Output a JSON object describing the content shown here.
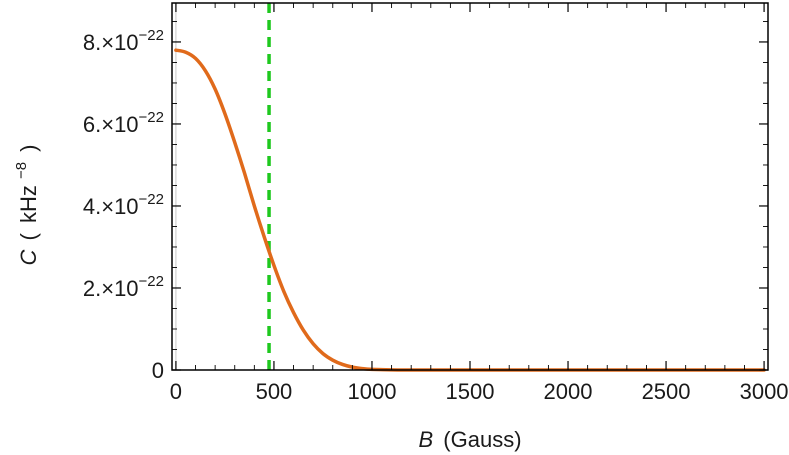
{
  "chart_data": {
    "type": "line",
    "title": "",
    "xlabel": {
      "symbol": "B",
      "unit": "(Gauss)"
    },
    "ylabel": {
      "symbol": "C",
      "open": "(",
      "unit_base": "kHz",
      "unit_exp": "−8",
      "close": ")"
    },
    "xlim": [
      -20,
      3020
    ],
    "ylim": [
      0,
      8.95e-22
    ],
    "x_ticks": [
      {
        "value": 0,
        "label": "0"
      },
      {
        "value": 500,
        "label": "500"
      },
      {
        "value": 1000,
        "label": "1000"
      },
      {
        "value": 1500,
        "label": "1500"
      },
      {
        "value": 2000,
        "label": "2000"
      },
      {
        "value": 2500,
        "label": "2500"
      },
      {
        "value": 3000,
        "label": "3000"
      }
    ],
    "y_ticks": [
      {
        "value": 0,
        "mantissa": "0",
        "exponent": ""
      },
      {
        "value": 2e-22,
        "mantissa": "2.×10",
        "exponent": "−22"
      },
      {
        "value": 4e-22,
        "mantissa": "4.×10",
        "exponent": "−22"
      },
      {
        "value": 6e-22,
        "mantissa": "6.×10",
        "exponent": "−22"
      },
      {
        "value": 8e-22,
        "mantissa": "8.×10",
        "exponent": "−22"
      }
    ],
    "series": [
      {
        "color": "#e06a1b",
        "points": [
          [
            0,
            7.8e-22
          ],
          [
            50,
            7.75e-22
          ],
          [
            100,
            7.6e-22
          ],
          [
            150,
            7.3e-22
          ],
          [
            200,
            6.85e-22
          ],
          [
            250,
            6.25e-22
          ],
          [
            300,
            5.55e-22
          ],
          [
            350,
            4.8e-22
          ],
          [
            400,
            4e-22
          ],
          [
            450,
            3.25e-22
          ],
          [
            500,
            2.55e-22
          ],
          [
            550,
            1.92e-22
          ],
          [
            600,
            1.4e-22
          ],
          [
            650,
            9.7e-23
          ],
          [
            700,
            6.4e-23
          ],
          [
            750,
            4e-23
          ],
          [
            800,
            2.4e-23
          ],
          [
            850,
            1.35e-23
          ],
          [
            900,
            7e-24
          ],
          [
            950,
            3.5e-24
          ],
          [
            1000,
            1.6e-24
          ],
          [
            1100,
            3e-25
          ],
          [
            1200,
            5e-26
          ],
          [
            1500,
            0
          ],
          [
            2000,
            0
          ],
          [
            2500,
            0
          ],
          [
            3000,
            0
          ]
        ]
      }
    ],
    "reference_lines": [
      {
        "orientation": "vertical",
        "x": 475,
        "color": "#1ec81e",
        "style": "dashed"
      }
    ],
    "grid": false
  }
}
